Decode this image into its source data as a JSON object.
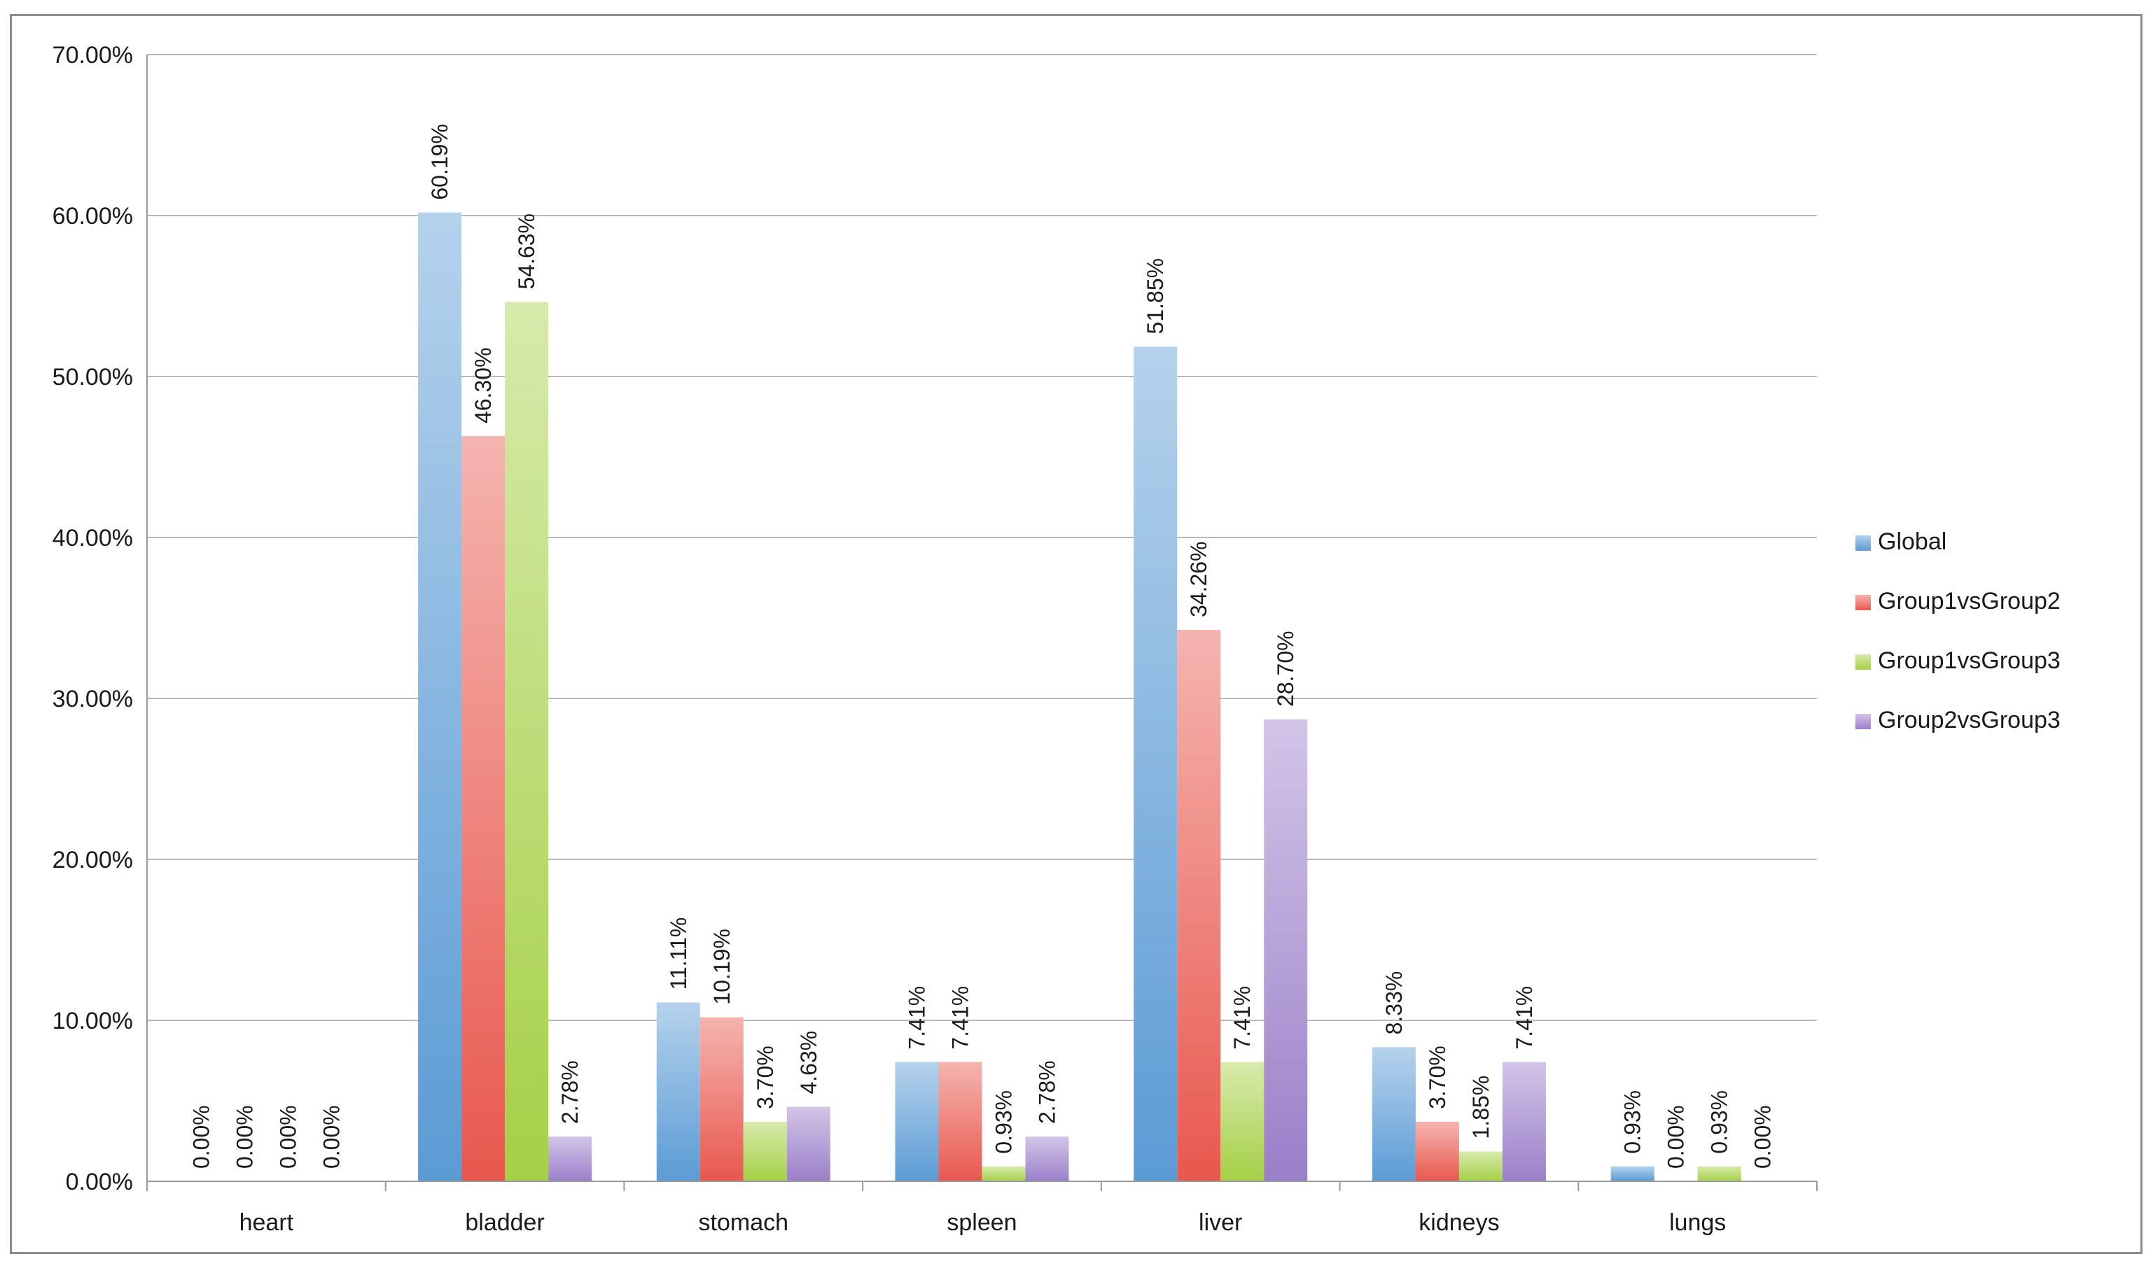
{
  "chart_data": {
    "type": "bar",
    "categories": [
      "heart",
      "bladder",
      "stomach",
      "spleen",
      "liver",
      "kidneys",
      "lungs"
    ],
    "series": [
      {
        "name": "Global",
        "color": "#5b9bd5",
        "values": [
          0.0,
          60.19,
          11.11,
          7.41,
          51.85,
          8.33,
          0.93
        ],
        "labels": [
          "0.00%",
          "60.19%",
          "11.11%",
          "7.41%",
          "51.85%",
          "8.33%",
          "0.93%"
        ]
      },
      {
        "name": "Group1vsGroup2",
        "color": "#e8584e",
        "values": [
          0.0,
          46.3,
          10.19,
          7.41,
          34.26,
          3.7,
          0.0
        ],
        "labels": [
          "0.00%",
          "46.30%",
          "10.19%",
          "7.41%",
          "34.26%",
          "3.70%",
          "0.00%"
        ]
      },
      {
        "name": "Group1vsGroup3",
        "color": "#a5d046",
        "values": [
          0.0,
          54.63,
          3.7,
          0.93,
          7.41,
          1.85,
          0.93
        ],
        "labels": [
          "0.00%",
          "54.63%",
          "3.70%",
          "0.93%",
          "7.41%",
          "1.85%",
          "0.93%"
        ]
      },
      {
        "name": "Group2vsGroup3",
        "color": "#9b7fc9",
        "values": [
          0.0,
          2.78,
          4.63,
          2.78,
          28.7,
          7.41,
          0.0
        ],
        "labels": [
          "0.00%",
          "2.78%",
          "4.63%",
          "2.78%",
          "28.70%",
          "7.41%",
          "0.00%"
        ]
      }
    ],
    "y_ticks": [
      0,
      10,
      20,
      30,
      40,
      50,
      60,
      70
    ],
    "y_tick_labels": [
      "0.00%",
      "10.00%",
      "20.00%",
      "30.00%",
      "40.00%",
      "50.00%",
      "60.00%",
      "70.00%"
    ],
    "ylim": [
      0,
      70
    ],
    "grid": true,
    "legend_position": "right"
  }
}
